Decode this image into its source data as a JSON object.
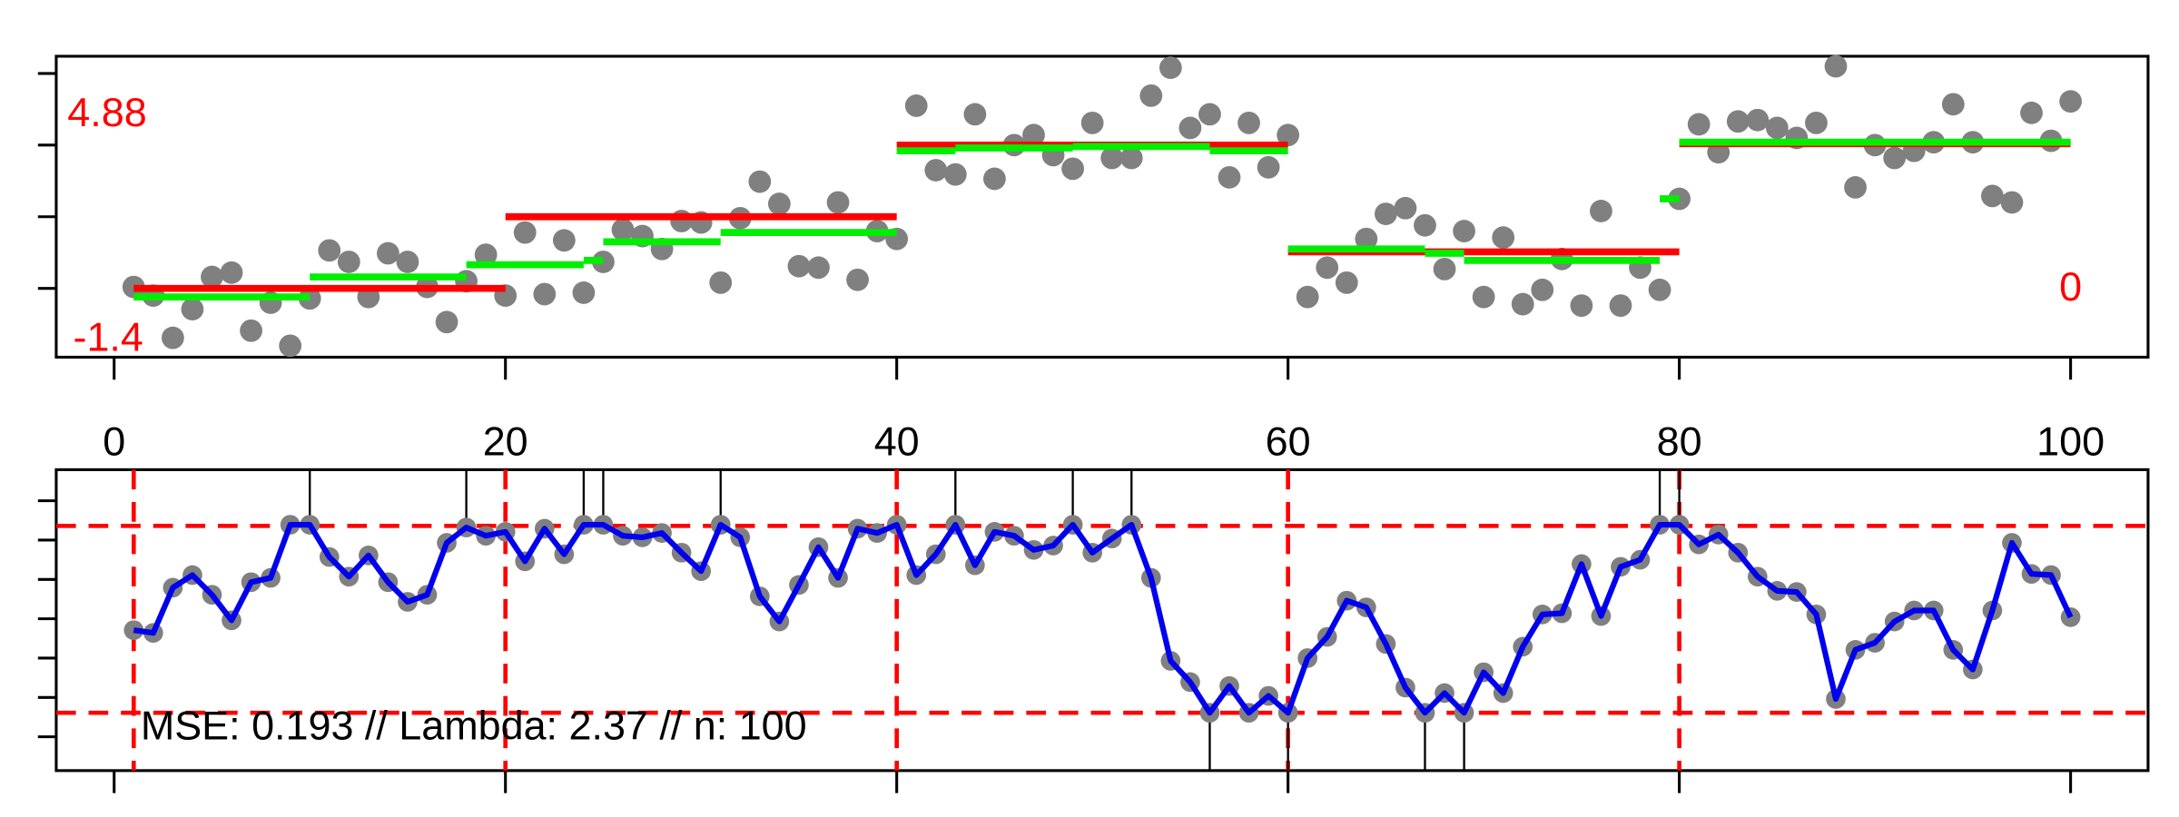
{
  "chart_data": [
    {
      "type": "scatter",
      "x": [
        1,
        2,
        3,
        4,
        5,
        6,
        7,
        8,
        9,
        10,
        11,
        12,
        13,
        14,
        15,
        16,
        17,
        18,
        19,
        20,
        21,
        22,
        23,
        24,
        25,
        26,
        27,
        28,
        29,
        30,
        31,
        32,
        33,
        34,
        35,
        36,
        37,
        38,
        39,
        40,
        41,
        42,
        43,
        44,
        45,
        46,
        47,
        48,
        49,
        50,
        51,
        52,
        53,
        54,
        55,
        56,
        57,
        58,
        59,
        60,
        61,
        62,
        63,
        64,
        65,
        66,
        67,
        68,
        69,
        70,
        71,
        72,
        73,
        74,
        75,
        76,
        77,
        78,
        79,
        80,
        81,
        82,
        83,
        84,
        85,
        86,
        87,
        88,
        89,
        90,
        91,
        92,
        93,
        94,
        95,
        96,
        97,
        98,
        99,
        100
      ],
      "values": [
        0.02,
        -0.1,
        -0.69,
        -0.29,
        0.16,
        0.22,
        -0.59,
        -0.2,
        -0.8,
        -0.14,
        0.53,
        0.37,
        -0.12,
        0.49,
        0.37,
        0.02,
        -0.47,
        0.1,
        0.47,
        -0.1,
        0.78,
        -0.08,
        0.67,
        -0.06,
        0.37,
        0.82,
        0.73,
        0.55,
        0.94,
        0.92,
        0.08,
        0.98,
        1.49,
        1.18,
        0.31,
        0.29,
        1.2,
        0.12,
        0.8,
        0.69,
        2.55,
        1.65,
        1.59,
        2.43,
        1.53,
        2.0,
        2.14,
        1.86,
        1.67,
        2.31,
        1.82,
        1.82,
        2.69,
        3.08,
        2.24,
        2.43,
        1.55,
        2.31,
        1.69,
        2.14,
        -0.12,
        0.29,
        0.08,
        0.69,
        1.04,
        1.12,
        0.88,
        0.27,
        0.8,
        -0.12,
        0.71,
        -0.22,
        -0.02,
        0.41,
        -0.24,
        1.08,
        -0.24,
        0.29,
        -0.02,
        1.25,
        2.29,
        1.9,
        2.33,
        2.35,
        2.24,
        2.1,
        2.31,
        3.1,
        1.41,
        2.0,
        1.82,
        1.92,
        2.04,
        2.57,
        2.04,
        1.29,
        1.2,
        2.45,
        2.06,
        2.61
      ],
      "color": "#808080",
      "xlim": [
        -2.96,
        103.96
      ],
      "ylim": [
        -0.96,
        3.24
      ],
      "xticks": [
        0,
        20,
        40,
        60,
        80,
        100
      ],
      "yticks": [
        0,
        1,
        2,
        3
      ],
      "truth": {
        "color": "#ff0000",
        "starts": [
          1,
          20,
          40,
          60,
          80
        ],
        "ends": [
          20,
          40,
          60,
          80,
          100
        ],
        "values": [
          0,
          1,
          2,
          0.51,
          2.02
        ]
      },
      "fit": {
        "color": "#00ee00",
        "starts": [
          1,
          10,
          18,
          24,
          25,
          31,
          40,
          43,
          49,
          56,
          60,
          67,
          69,
          79,
          80
        ],
        "ends": [
          10,
          18,
          24,
          25,
          31,
          40,
          43,
          49,
          56,
          60,
          67,
          69,
          79,
          80,
          100
        ],
        "values": [
          -0.12,
          0.16,
          0.33,
          0.39,
          0.65,
          0.78,
          1.92,
          1.96,
          1.98,
          1.92,
          0.55,
          0.49,
          0.39,
          1.25,
          2.04
        ]
      },
      "annotations": [
        "4.88",
        "-1.4",
        "0"
      ],
      "annotation_color": "#ff0000"
    },
    {
      "type": "line",
      "x": [
        1,
        2,
        3,
        4,
        5,
        6,
        7,
        8,
        9,
        10,
        11,
        12,
        13,
        14,
        15,
        16,
        17,
        18,
        19,
        20,
        21,
        22,
        23,
        24,
        25,
        26,
        27,
        28,
        29,
        30,
        31,
        32,
        33,
        34,
        35,
        36,
        37,
        38,
        39,
        40,
        41,
        42,
        43,
        44,
        45,
        46,
        47,
        48,
        49,
        50,
        51,
        52,
        53,
        54,
        55,
        56,
        57,
        58,
        59,
        60,
        61,
        62,
        63,
        64,
        65,
        66,
        67,
        68,
        69,
        70,
        71,
        72,
        73,
        74,
        75,
        76,
        77,
        78,
        79,
        80,
        81,
        82,
        83,
        84,
        85,
        86,
        87,
        88,
        89,
        90,
        91,
        92,
        93,
        94,
        95,
        96,
        97,
        98,
        99,
        100
      ],
      "values": [
        2.71,
        2.64,
        3.79,
        4.11,
        3.61,
        2.96,
        3.93,
        4.04,
        5.39,
        5.39,
        4.57,
        4.07,
        4.61,
        3.93,
        3.43,
        3.61,
        4.93,
        5.32,
        5.11,
        5.21,
        4.46,
        5.29,
        4.64,
        5.39,
        5.39,
        5.11,
        5.07,
        5.18,
        4.68,
        4.21,
        5.39,
        5.07,
        3.57,
        2.93,
        3.86,
        4.82,
        4.04,
        5.29,
        5.18,
        5.39,
        4.11,
        4.64,
        5.39,
        4.36,
        5.21,
        5.11,
        4.75,
        4.86,
        5.39,
        4.68,
        5.04,
        5.39,
        4.04,
        1.93,
        1.39,
        0.61,
        1.29,
        0.61,
        1.04,
        0.61,
        2.0,
        2.54,
        3.46,
        3.29,
        2.36,
        1.25,
        0.61,
        1.11,
        0.61,
        1.64,
        1.11,
        2.29,
        3.11,
        3.14,
        4.39,
        3.07,
        4.32,
        4.5,
        5.39,
        5.39,
        4.89,
        5.14,
        4.68,
        4.07,
        3.71,
        3.68,
        3.11,
        0.96,
        2.21,
        2.39,
        2.93,
        3.21,
        3.21,
        2.21,
        1.71,
        3.21,
        4.93,
        4.14,
        4.11,
        3.04
      ],
      "color": "#0000ee",
      "point_color": "#808080",
      "xlim": [
        -2.96,
        103.96
      ],
      "ylim": [
        -0.86,
        6.79
      ],
      "xticks": [
        0,
        20,
        40,
        60,
        80,
        100
      ],
      "yticks": [
        0,
        1,
        2,
        3,
        4,
        5,
        6
      ],
      "thresholds": [
        5.36,
        0.61
      ],
      "threshold_color": "#ff0000",
      "changepoints": [
        1,
        20,
        40,
        60,
        80
      ],
      "upper_hits": [
        10,
        18,
        24,
        25,
        31,
        43,
        49,
        52,
        79,
        80
      ],
      "lower_hits": [
        56,
        60,
        67,
        69
      ],
      "annotation": "MSE: 0.193 // Lambda: 2.37 // n: 100"
    }
  ]
}
